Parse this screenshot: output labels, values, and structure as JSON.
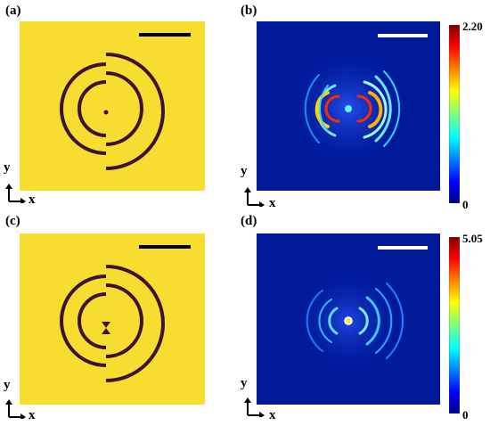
{
  "panels": [
    {
      "label": "(a)",
      "kind": "structure",
      "center_feature": "dot"
    },
    {
      "label": "(b)",
      "kind": "field",
      "colorbar": {
        "max": "2.20",
        "min": "0"
      }
    },
    {
      "label": "(c)",
      "kind": "structure",
      "center_feature": "bowtie"
    },
    {
      "label": "(d)",
      "kind": "field",
      "colorbar": {
        "max": "5.05",
        "min": "0"
      }
    }
  ],
  "axes": {
    "x": "x",
    "y": "y"
  },
  "colors": {
    "gold": "#f7dd2f",
    "ring": "#3d1238",
    "field_bg": "#001a9a"
  }
}
